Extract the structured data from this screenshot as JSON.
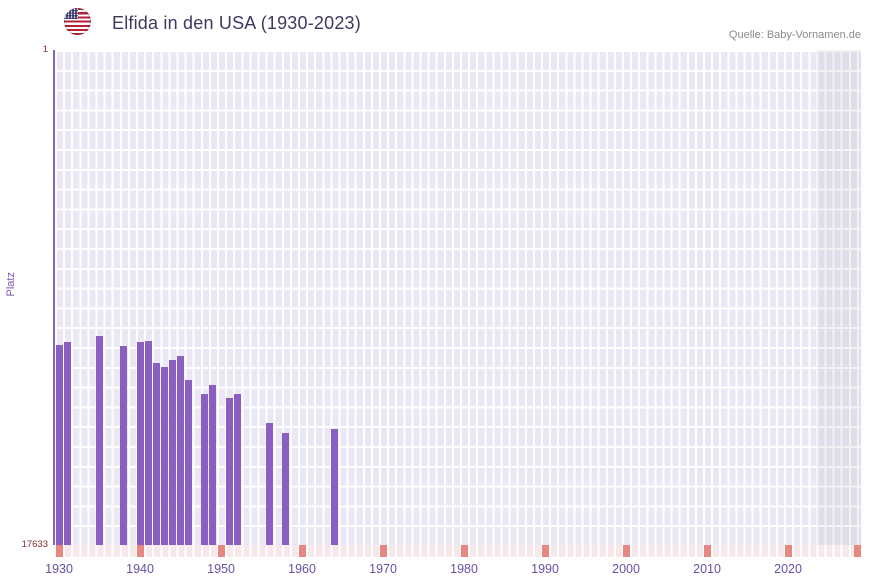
{
  "header": {
    "title": "Elfida in den USA (1930-2023)",
    "source": "Quelle: Baby-Vornamen.de",
    "flag": "us-flag-icon"
  },
  "chart_data": {
    "type": "bar",
    "title": "Elfida in den USA (1930-2023)",
    "xlabel": "",
    "ylabel": "Platz",
    "y_axis": {
      "min": 1,
      "max": 17633,
      "inverted": true,
      "top_label": "1",
      "bottom_label": "17633"
    },
    "x_axis": {
      "start": 1930,
      "end": 2023,
      "tick_interval": 10,
      "tick_years": [
        1930,
        1940,
        1950,
        1960,
        1970,
        1980,
        1990,
        2000,
        2010,
        2020
      ]
    },
    "legend": "none",
    "grid": true,
    "series": [
      {
        "name": "Elfida",
        "points": [
          {
            "year": 1930,
            "rank": 10500
          },
          {
            "year": 1931,
            "rank": 10400
          },
          {
            "year": 1935,
            "rank": 10200
          },
          {
            "year": 1938,
            "rank": 10550
          },
          {
            "year": 1940,
            "rank": 10400
          },
          {
            "year": 1941,
            "rank": 10350
          },
          {
            "year": 1942,
            "rank": 11150
          },
          {
            "year": 1943,
            "rank": 11300
          },
          {
            "year": 1944,
            "rank": 11050
          },
          {
            "year": 1945,
            "rank": 10900
          },
          {
            "year": 1946,
            "rank": 11750
          },
          {
            "year": 1948,
            "rank": 12250
          },
          {
            "year": 1949,
            "rank": 11950
          },
          {
            "year": 1951,
            "rank": 12400
          },
          {
            "year": 1952,
            "rank": 12250
          },
          {
            "year": 1956,
            "rank": 13300
          },
          {
            "year": 1958,
            "rank": 13650
          },
          {
            "year": 1964,
            "rank": 13500
          }
        ]
      }
    ],
    "colors": {
      "bar": "#8b5fc2",
      "plot_bg": "#ebe8f5",
      "grid": "#ffffff",
      "axis": "#8565bb",
      "year_label": "#6a4fa5",
      "rank_label": "#7e2f2f",
      "tick": "#e78782",
      "strip_bg": "#f7e9eb",
      "padding_band_overlay": "rgba(125,125,150,0.10)",
      "title": "#3f3960",
      "source": "#8a8a90"
    }
  }
}
